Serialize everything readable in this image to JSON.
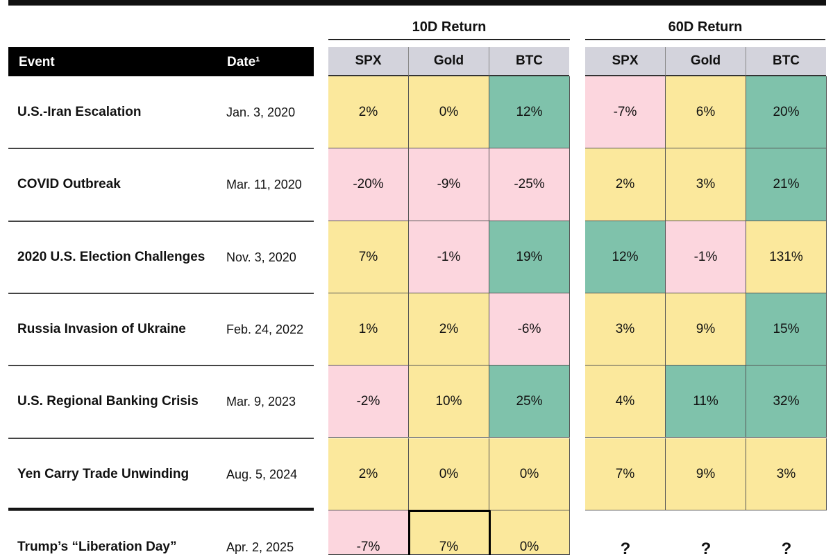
{
  "chart_data": {
    "type": "table",
    "groups": [
      "10D Return",
      "60D Return"
    ],
    "columns": [
      {
        "group": 0,
        "label": "SPX"
      },
      {
        "group": 0,
        "label": "Gold"
      },
      {
        "group": 0,
        "label": "BTC"
      },
      {
        "group": 1,
        "label": "SPX"
      },
      {
        "group": 1,
        "label": "Gold"
      },
      {
        "group": 1,
        "label": "BTC"
      }
    ],
    "event_header": "Event",
    "date_header": "Date¹",
    "rows": [
      {
        "event": "U.S.-Iran Escalation",
        "date": "Jan. 3, 2020",
        "values": [
          "2%",
          "0%",
          "12%",
          "-7%",
          "6%",
          "20%"
        ],
        "colors": [
          "y",
          "y",
          "g",
          "p",
          "y",
          "g"
        ]
      },
      {
        "event": "COVID Outbreak",
        "date": "Mar. 11, 2020",
        "values": [
          "-20%",
          "-9%",
          "-25%",
          "2%",
          "3%",
          "21%"
        ],
        "colors": [
          "p",
          "p",
          "p",
          "y",
          "y",
          "g"
        ]
      },
      {
        "event": "2020 U.S. Election Challenges",
        "date": "Nov. 3, 2020",
        "values": [
          "7%",
          "-1%",
          "19%",
          "12%",
          "-1%",
          "131%"
        ],
        "colors": [
          "y",
          "p",
          "g",
          "g",
          "p",
          "y"
        ]
      },
      {
        "event": "Russia Invasion of Ukraine",
        "date": "Feb. 24, 2022",
        "values": [
          "1%",
          "2%",
          "-6%",
          "3%",
          "9%",
          "15%"
        ],
        "colors": [
          "y",
          "y",
          "p",
          "y",
          "y",
          "g"
        ]
      },
      {
        "event": "U.S. Regional Banking Crisis",
        "date": "Mar. 9, 2023",
        "values": [
          "-2%",
          "10%",
          "25%",
          "4%",
          "11%",
          "32%"
        ],
        "colors": [
          "p",
          "y",
          "g",
          "y",
          "g",
          "g"
        ]
      },
      {
        "event": "Yen Carry Trade Unwinding",
        "date": "Aug. 5, 2024",
        "values": [
          "2%",
          "0%",
          "0%",
          "7%",
          "9%",
          "3%"
        ],
        "colors": [
          "y",
          "y",
          "y",
          "y",
          "y",
          "y"
        ]
      },
      {
        "event": "Trump’s “Liberation Day”",
        "date": "Apr. 2, 2025",
        "values": [
          "-7%",
          "7%",
          "0%",
          "?",
          "?",
          "?"
        ],
        "colors": [
          "p",
          "y",
          "y",
          "w",
          "w",
          "w"
        ]
      }
    ],
    "palette": {
      "y": "#fbe89c",
      "p": "#fcd6de",
      "g": "#7fc2ab",
      "w": "#ffffff"
    }
  }
}
